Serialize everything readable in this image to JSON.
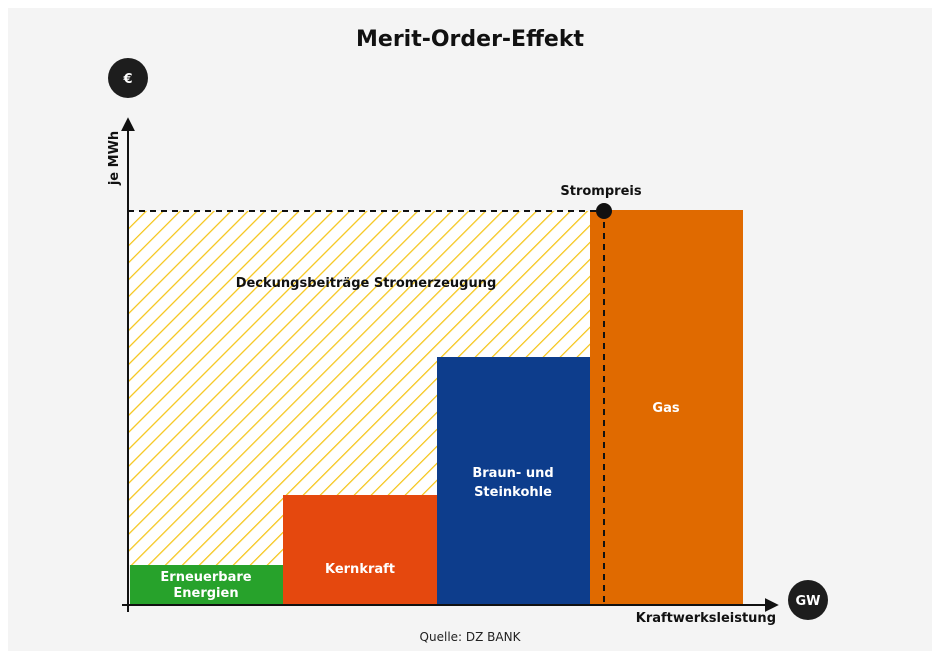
{
  "title": "Merit-Order-Effekt",
  "y_axis": {
    "icon": "€",
    "label": "je MWh"
  },
  "x_axis": {
    "icon": "GW",
    "label": "Kraftwerksleistung"
  },
  "price_label": "Strompreis",
  "area_label": "Deckungsbeiträge Stromerzeugung",
  "blocks": [
    {
      "label": [
        "Erneuerbare",
        "Energien"
      ]
    },
    {
      "label": [
        "Kernkraft"
      ]
    },
    {
      "label": [
        "Braun- und",
        "Steinkohle"
      ]
    },
    {
      "label": [
        "Gas"
      ]
    }
  ],
  "source": "Quelle: DZ BANK"
}
